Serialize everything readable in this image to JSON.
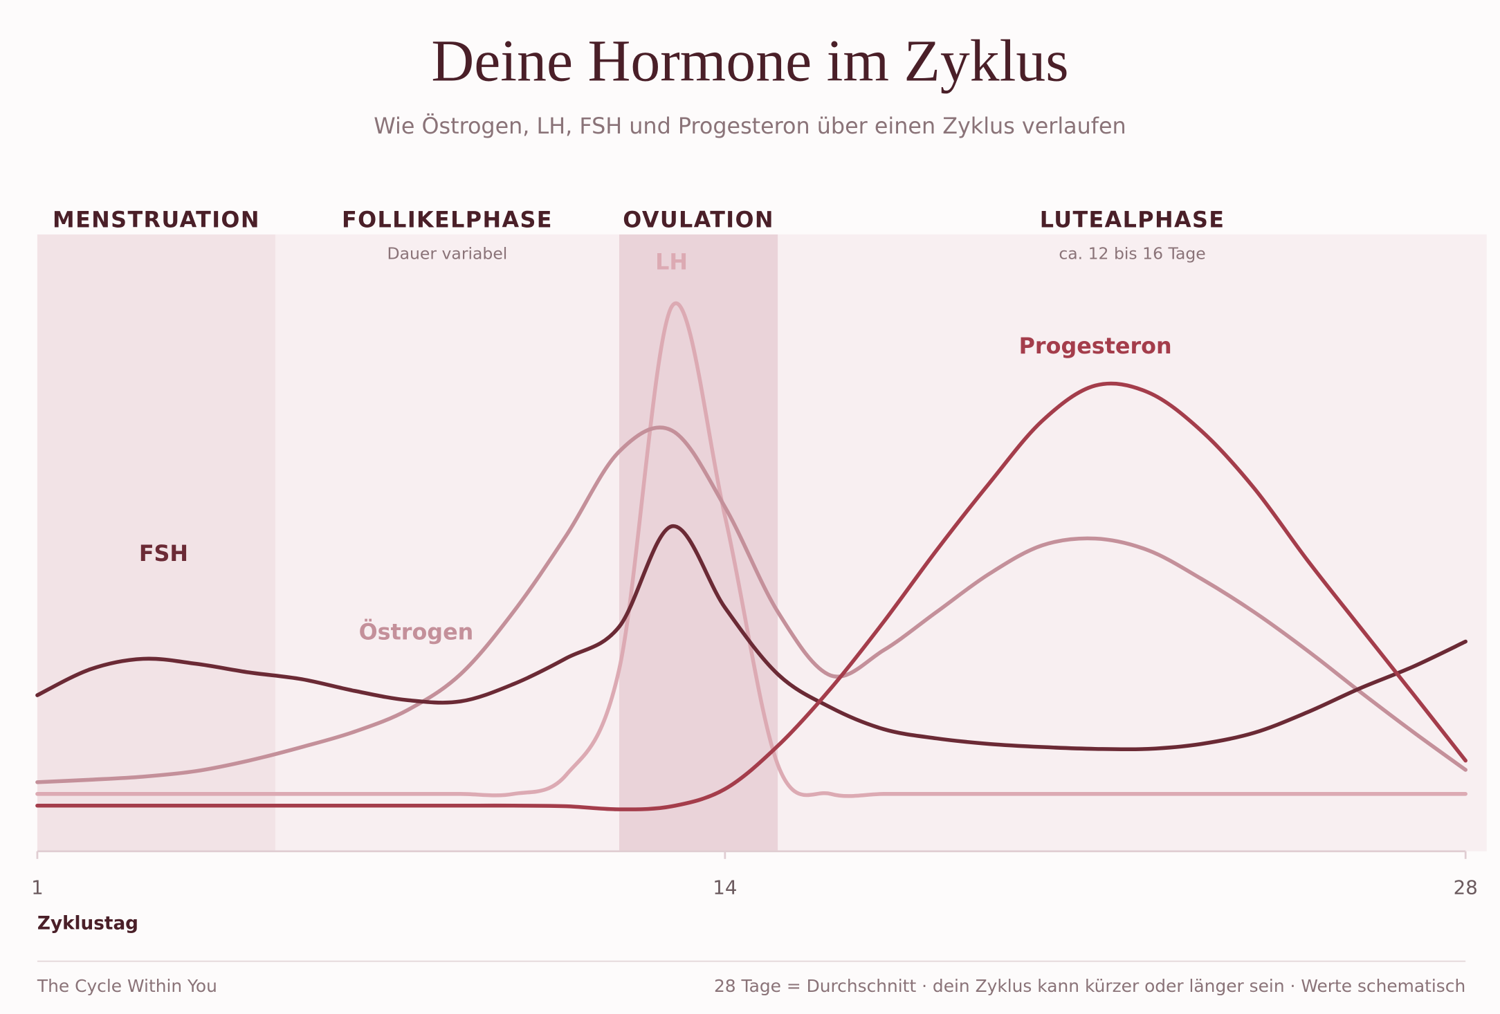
{
  "chart_data": {
    "type": "line",
    "title": "Deine Hormone im Zyklus",
    "subtitle": "Wie Östrogen, LH, FSH und Progesteron über einen Zyklus verlaufen",
    "x_label": "Zyklustag",
    "x": [
      1,
      2,
      3,
      4,
      5,
      6,
      7,
      8,
      9,
      10,
      11,
      12,
      13,
      14,
      15,
      16,
      17,
      18,
      19,
      20,
      21,
      22,
      23,
      24,
      25,
      26,
      27,
      28
    ],
    "xlim": [
      1,
      28
    ],
    "xticks": [
      1,
      14,
      28
    ],
    "ylim": [
      0,
      100
    ],
    "phases": [
      {
        "name": "MENSTRUATION",
        "start": 1,
        "end": 5.5,
        "color": "#f2e3e6"
      },
      {
        "name": "FOLLIKELPHASE",
        "note": "Dauer variabel",
        "start": 5.5,
        "end": 12,
        "color": "#f8eff1"
      },
      {
        "name": "OVULATION",
        "start": 12,
        "end": 15,
        "color": "#ead3d9"
      },
      {
        "name": "LUTEALPHASE",
        "note": "ca. 12 bis 16 Tage",
        "start": 15,
        "end": 28.4,
        "color": "#f8eff1"
      }
    ],
    "series": [
      {
        "name": "FSH",
        "color": "#6b2a35",
        "values": [
          25.3,
          29.5,
          31.2,
          30.4,
          29,
          27.9,
          26,
          24.5,
          24.3,
          27.1,
          31.3,
          36.4,
          52.7,
          39.5,
          28.7,
          23.3,
          19.8,
          18.3,
          17.4,
          16.9,
          16.6,
          16.6,
          17.4,
          19.2,
          22.5,
          26.4,
          29.9,
          34
        ]
      },
      {
        "name": "Östrogen",
        "color": "#c4909a",
        "values": [
          11.2,
          11.6,
          12.1,
          13,
          14.7,
          16.9,
          19.4,
          22.9,
          28.7,
          38.8,
          51.2,
          64.8,
          68.2,
          55.8,
          38.8,
          28.5,
          32.6,
          38.8,
          45,
          49.6,
          50.7,
          48.8,
          44.2,
          38.8,
          32.6,
          25.9,
          19.4,
          13.2
        ]
      },
      {
        "name": "LH",
        "color": "#dcaab3",
        "values": [
          9.3,
          9.3,
          9.3,
          9.3,
          9.3,
          9.3,
          9.3,
          9.3,
          9.3,
          9.3,
          12.4,
          29.5,
          88.4,
          54.3,
          14,
          9.3,
          9.3,
          9.3,
          9.3,
          9.3,
          9.3,
          9.3,
          9.3,
          9.3,
          9.3,
          9.3,
          9.3,
          9.3
        ]
      },
      {
        "name": "Progesteron",
        "color": "#a43d4b",
        "values": [
          7.4,
          7.4,
          7.4,
          7.4,
          7.4,
          7.4,
          7.4,
          7.4,
          7.4,
          7.4,
          7.3,
          6.8,
          7.3,
          10.1,
          17.1,
          26.4,
          37.2,
          48.8,
          59.7,
          69.8,
          75.5,
          74.4,
          68.2,
          58.9,
          47.3,
          36.4,
          25.6,
          14.7
        ]
      }
    ],
    "footer_left": "The Cycle Within You",
    "footer_right": "28 Tage = Durchschnitt · dein Zyklus kann kürzer oder länger sein · Werte schematisch"
  }
}
